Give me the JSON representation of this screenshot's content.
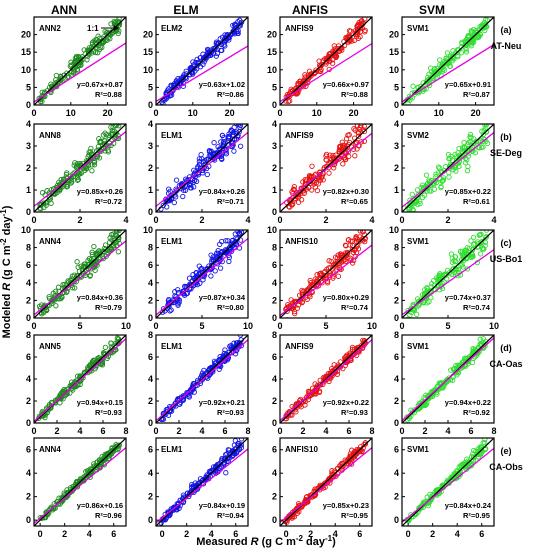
{
  "figure": {
    "columns": [
      "ANN",
      "ELM",
      "ANFIS",
      "SVM"
    ],
    "xlabel": {
      "pre": "Measured ",
      "var": "R",
      "post": " (g C m",
      "sup": "-2",
      "post2": " day",
      "sup2": "-1",
      "end": ")"
    },
    "ylabel": {
      "pre": "Modeled ",
      "var": "R",
      "post": " (g C m",
      "sup": "-2",
      "post2": " day",
      "sup2": "-1",
      "end": ")"
    },
    "arrow_label": "1:1",
    "colors": {
      "ANN": "#1f8a1f",
      "ELM": "#1414e6",
      "ANFIS": "#e61414",
      "SVM": "#33dd33",
      "fit": "#e600e6",
      "one_to_one": "#000000"
    }
  },
  "chart_data": [
    {
      "type": "scatter",
      "row_letter": "(a)",
      "site": "AT-Neu",
      "xlim": [
        0,
        25
      ],
      "ylim": [
        0,
        25
      ],
      "xticks": [
        "0",
        "10",
        "20"
      ],
      "xtick_values": [
        0,
        10,
        20
      ],
      "yticks": [
        "0",
        "5",
        "10",
        "15",
        "20"
      ],
      "ytick_values": [
        0,
        5,
        10,
        15,
        20
      ],
      "panels": [
        {
          "model": "ANN",
          "name": "ANN2",
          "slope": 0.67,
          "intercept": 0.87,
          "eq": "y=0.67x+0.87",
          "r2": "R²=0.88"
        },
        {
          "model": "ELM",
          "name": "ELM2",
          "slope": 0.63,
          "intercept": 1.02,
          "eq": "y=0.63x+1.02",
          "r2": "R²=0.86"
        },
        {
          "model": "ANFIS",
          "name": "ANFIS9",
          "slope": 0.66,
          "intercept": 0.97,
          "eq": "y=0.66x+0.97",
          "r2": "R²=0.88"
        },
        {
          "model": "SVM",
          "name": "SVM1",
          "slope": 0.65,
          "intercept": 0.91,
          "eq": "y=0.65x+0.91",
          "r2": "R²=0.87"
        }
      ]
    },
    {
      "type": "scatter",
      "row_letter": "(b)",
      "site": "SE-Deg",
      "xlim": [
        0,
        4
      ],
      "ylim": [
        0,
        4
      ],
      "xticks": [
        "0",
        "2",
        "4"
      ],
      "xtick_values": [
        0,
        2,
        4
      ],
      "yticks": [
        "0",
        "1",
        "2",
        "3",
        "4"
      ],
      "ytick_values": [
        0,
        1,
        2,
        3,
        4
      ],
      "panels": [
        {
          "model": "ANN",
          "name": "ANN8",
          "slope": 0.85,
          "intercept": 0.26,
          "eq": "y=0.85x+0.26",
          "r2": "R²=0.72"
        },
        {
          "model": "ELM",
          "name": "ELM1",
          "slope": 0.84,
          "intercept": 0.26,
          "eq": "y=0.84x+0.26",
          "r2": "R²=0.71"
        },
        {
          "model": "ANFIS",
          "name": "ANFIS9",
          "slope": 0.82,
          "intercept": 0.3,
          "eq": "y=0.82x+0.30",
          "r2": "R²=0.65"
        },
        {
          "model": "SVM",
          "name": "SVM2",
          "slope": 0.85,
          "intercept": 0.22,
          "eq": "y=0.85x+0.22",
          "r2": "R²=0.61"
        }
      ]
    },
    {
      "type": "scatter",
      "row_letter": "(c)",
      "site": "US-Bo1",
      "xlim": [
        0,
        10
      ],
      "ylim": [
        0,
        10
      ],
      "xticks": [
        "0",
        "5",
        "10"
      ],
      "xtick_values": [
        0,
        5,
        10
      ],
      "yticks": [
        "0",
        "2",
        "4",
        "6",
        "8",
        "10"
      ],
      "ytick_values": [
        0,
        2,
        4,
        6,
        8,
        10
      ],
      "panels": [
        {
          "model": "ANN",
          "name": "ANN4",
          "slope": 0.84,
          "intercept": 0.36,
          "eq": "y=0.84x+0.36",
          "r2": "R²=0.79"
        },
        {
          "model": "ELM",
          "name": "ELM1",
          "slope": 0.87,
          "intercept": 0.34,
          "eq": "y=0.87x+0.34",
          "r2": "R²=0.80"
        },
        {
          "model": "ANFIS",
          "name": "ANFIS10",
          "slope": 0.8,
          "intercept": 0.29,
          "eq": "y=0.80x+0.29",
          "r2": "R²=0.74"
        },
        {
          "model": "SVM",
          "name": "SVM1",
          "slope": 0.74,
          "intercept": 0.37,
          "eq": "y=0.74x+0.37",
          "r2": "R²=0.74"
        }
      ]
    },
    {
      "type": "scatter",
      "row_letter": "(d)",
      "site": "CA-Oas",
      "xlim": [
        0,
        8
      ],
      "ylim": [
        0,
        8
      ],
      "xticks": [
        "0",
        "2",
        "4",
        "6",
        "8"
      ],
      "xtick_values": [
        0,
        2,
        4,
        6,
        8
      ],
      "yticks": [
        "0",
        "2",
        "4",
        "6",
        "8"
      ],
      "ytick_values": [
        0,
        2,
        4,
        6,
        8
      ],
      "panels": [
        {
          "model": "ANN",
          "name": "ANN5",
          "slope": 0.94,
          "intercept": 0.15,
          "eq": "y=0.94x+0.15",
          "r2": "R²=0.93"
        },
        {
          "model": "ELM",
          "name": "ELM1",
          "slope": 0.92,
          "intercept": 0.21,
          "eq": "y=0.92x+0.21",
          "r2": "R²=0.93"
        },
        {
          "model": "ANFIS",
          "name": "ANFIS9",
          "slope": 0.92,
          "intercept": 0.22,
          "eq": "y=0.92x+0.22",
          "r2": "R²=0.93"
        },
        {
          "model": "SVM",
          "name": "SVM1",
          "slope": 0.94,
          "intercept": 0.22,
          "eq": "y=0.94x+0.22",
          "r2": "R²=0.92"
        }
      ]
    },
    {
      "type": "scatter",
      "row_letter": "(e)",
      "site": "CA-Obs",
      "xlim": [
        -0.5,
        7
      ],
      "ylim": [
        -0.5,
        7
      ],
      "xticks": [
        "0",
        "2",
        "4",
        "6"
      ],
      "xtick_values": [
        0,
        2,
        4,
        6
      ],
      "yticks": [
        "0",
        "2",
        "4",
        "6"
      ],
      "ytick_values": [
        0,
        2,
        4,
        6
      ],
      "panels": [
        {
          "model": "ANN",
          "name": "ANN4",
          "slope": 0.86,
          "intercept": 0.16,
          "eq": "y=0.86x+0.16",
          "r2": "R²=0.96"
        },
        {
          "model": "ELM",
          "name": "ELM1",
          "slope": 0.84,
          "intercept": 0.19,
          "eq": "y=0.84x+0.19",
          "r2": "R²=0.94"
        },
        {
          "model": "ANFIS",
          "name": "ANFIS10",
          "slope": 0.85,
          "intercept": 0.23,
          "eq": "y=0.85x+0.23",
          "r2": "R²=0.95"
        },
        {
          "model": "SVM",
          "name": "SVM1",
          "slope": 0.84,
          "intercept": 0.24,
          "eq": "y=0.84x+0.24",
          "r2": "R²=0.95"
        }
      ]
    }
  ]
}
